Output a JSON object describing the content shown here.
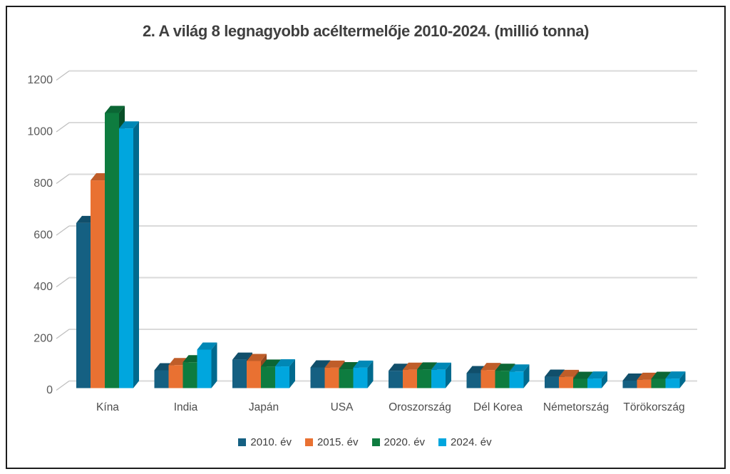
{
  "chart_data": {
    "type": "bar",
    "projection": "3d-column",
    "title": "2. A világ 8 legnagyobb acéltermelője 2010-2024. (millió tonna)",
    "categories": [
      "Kína",
      "India",
      "Japán",
      "USA",
      "Oroszország",
      "Dél Korea",
      "Németország",
      "Törökország"
    ],
    "series": [
      {
        "name": "2010. év",
        "color": "#156082",
        "values": [
          639,
          69,
          110,
          80,
          67,
          58,
          44,
          29
        ]
      },
      {
        "name": "2015. év",
        "color": "#E97132",
        "values": [
          804,
          89,
          105,
          79,
          71,
          70,
          43,
          32
        ]
      },
      {
        "name": "2020. év",
        "color": "#0E7C3F",
        "values": [
          1065,
          100,
          83,
          73,
          72,
          67,
          36,
          36
        ]
      },
      {
        "name": "2024. év",
        "color": "#00A6DE",
        "values": [
          1005,
          149,
          84,
          79,
          71,
          64,
          37,
          37
        ]
      }
    ],
    "ylabel": "",
    "xlabel": "",
    "ylim": [
      0,
      1200
    ],
    "yticks": [
      "0",
      "200",
      "400",
      "600",
      "800",
      "1000",
      "1200"
    ],
    "grid": true,
    "legend_position": "bottom"
  },
  "style": {
    "background": "#FFFFFF",
    "frame_border_color": "#1C1C1C",
    "grid_color": "#DADADA",
    "tick_color": "#BFBFBF",
    "label_color": "#595959",
    "category_label_color": "#4D4D4D",
    "title_color": "#3F3F3F",
    "legend_text_color": "#3D3D3D"
  }
}
